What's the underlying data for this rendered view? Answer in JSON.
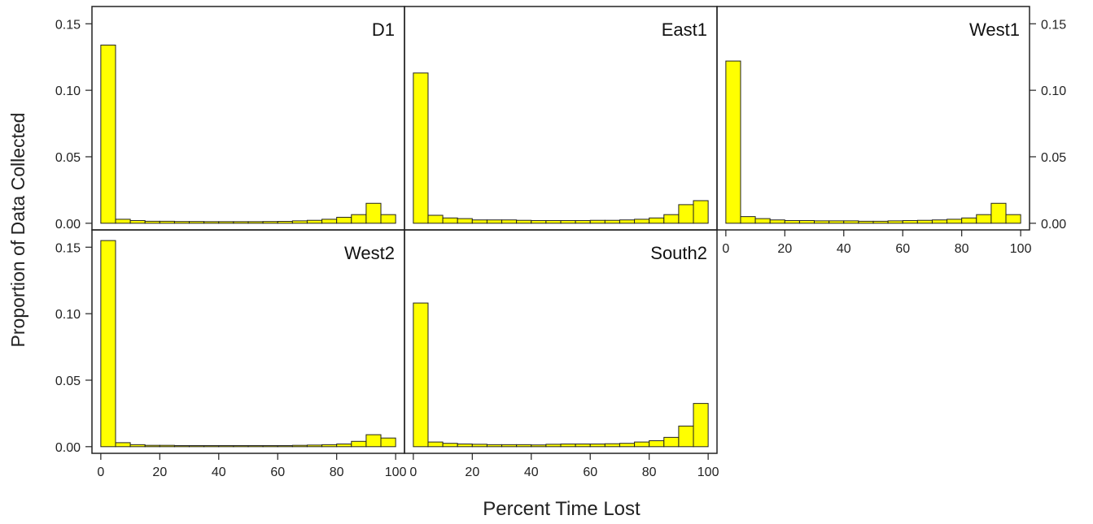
{
  "chart_data": {
    "type": "bar",
    "layout": "lattice-histogram",
    "xlabel": "Percent Time Lost",
    "ylabel": "Proportion of Data Collected",
    "bin_edges": [
      0,
      5,
      10,
      15,
      20,
      25,
      30,
      35,
      40,
      45,
      50,
      55,
      60,
      65,
      70,
      75,
      80,
      85,
      90,
      95,
      100
    ],
    "xlim": [
      -3,
      103
    ],
    "ylim": [
      -0.005,
      0.163
    ],
    "x_ticks": [
      0,
      20,
      40,
      60,
      80,
      100
    ],
    "y_ticks": [
      0.0,
      0.05,
      0.1,
      0.15
    ],
    "y_tick_labels": [
      "0.00",
      "0.05",
      "0.10",
      "0.15"
    ],
    "bar_color": "#ffff00",
    "bar_edge_color": "#222222",
    "series": [
      {
        "name": "D1",
        "values": [
          0.134,
          0.003,
          0.002,
          0.0015,
          0.0015,
          0.0013,
          0.0013,
          0.0012,
          0.0012,
          0.0012,
          0.0012,
          0.0013,
          0.0014,
          0.0018,
          0.0022,
          0.003,
          0.0045,
          0.0065,
          0.015,
          0.0065
        ]
      },
      {
        "name": "East1",
        "values": [
          0.113,
          0.006,
          0.004,
          0.0035,
          0.0025,
          0.0025,
          0.0025,
          0.0022,
          0.002,
          0.002,
          0.002,
          0.002,
          0.0022,
          0.0022,
          0.0025,
          0.003,
          0.004,
          0.0065,
          0.014,
          0.017
        ]
      },
      {
        "name": "West1",
        "values": [
          0.122,
          0.005,
          0.0035,
          0.0025,
          0.002,
          0.002,
          0.0018,
          0.0018,
          0.0018,
          0.0015,
          0.0015,
          0.0018,
          0.002,
          0.0022,
          0.0025,
          0.003,
          0.004,
          0.0065,
          0.015,
          0.0065
        ]
      },
      {
        "name": "West2",
        "values": [
          0.155,
          0.003,
          0.0015,
          0.001,
          0.001,
          0.0008,
          0.0008,
          0.0008,
          0.0008,
          0.0008,
          0.0008,
          0.0008,
          0.0008,
          0.001,
          0.0012,
          0.0015,
          0.002,
          0.004,
          0.009,
          0.0065
        ]
      },
      {
        "name": "South2",
        "values": [
          0.108,
          0.0035,
          0.0025,
          0.002,
          0.0018,
          0.0015,
          0.0015,
          0.0015,
          0.0013,
          0.0018,
          0.002,
          0.002,
          0.002,
          0.0022,
          0.0025,
          0.0035,
          0.0045,
          0.007,
          0.0155,
          0.0325
        ]
      }
    ]
  }
}
